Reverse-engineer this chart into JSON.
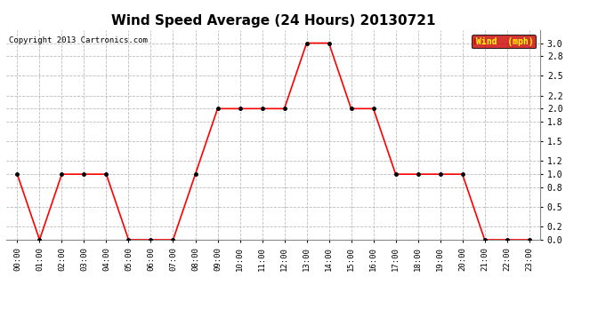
{
  "title": "Wind Speed Average (24 Hours) 20130721",
  "copyright": "Copyright 2013 Cartronics.com",
  "legend_label": "Wind  (mph)",
  "hours": [
    "00:00",
    "01:00",
    "02:00",
    "03:00",
    "04:00",
    "05:00",
    "06:00",
    "07:00",
    "08:00",
    "09:00",
    "10:00",
    "11:00",
    "12:00",
    "13:00",
    "14:00",
    "15:00",
    "16:00",
    "17:00",
    "18:00",
    "19:00",
    "20:00",
    "21:00",
    "22:00",
    "23:00"
  ],
  "values": [
    1.0,
    0.0,
    1.0,
    1.0,
    1.0,
    0.0,
    0.0,
    0.0,
    1.0,
    2.0,
    2.0,
    2.0,
    2.0,
    3.0,
    3.0,
    2.0,
    2.0,
    1.0,
    1.0,
    1.0,
    1.0,
    0.0,
    0.0,
    0.0
  ],
  "line_color": "#ff0000",
  "marker_color": "#000000",
  "background_color": "#ffffff",
  "grid_color": "#bbbbbb",
  "ylim": [
    0.0,
    3.2
  ],
  "yticks": [
    0.0,
    0.2,
    0.5,
    0.8,
    1.0,
    1.2,
    1.5,
    1.8,
    2.0,
    2.2,
    2.5,
    2.8,
    3.0
  ],
  "title_fontsize": 11,
  "legend_bg": "#cc0000",
  "legend_text_color": "#ffff00",
  "fig_width": 6.9,
  "fig_height": 3.75,
  "dpi": 100
}
